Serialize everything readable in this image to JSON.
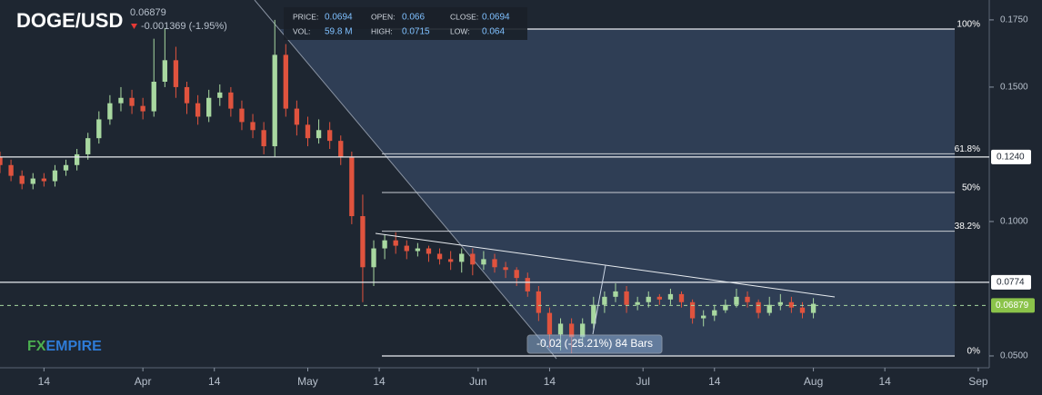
{
  "chart_data": {
    "type": "candlestick",
    "title": "DOGE/USD",
    "last_price": 0.06879,
    "change": "-0.001369 (-1.95%)",
    "info": {
      "labels": [
        "PRICE:",
        "OPEN:",
        "CLOSE:",
        "VOL:",
        "HIGH:",
        "LOW:"
      ],
      "values": [
        "0.0694",
        "0.066",
        "0.0694",
        "59.8 M",
        "0.0715",
        "0.064"
      ]
    },
    "logo": [
      "FX",
      "EMPIRE"
    ],
    "measure": "-0.02 (-25.21%) 84 Bars",
    "xlim": [
      0,
      180
    ],
    "ylim": [
      0.0456,
      0.1824
    ],
    "xticks": [
      {
        "value": 8,
        "label": "14"
      },
      {
        "value": 26,
        "label": "Apr"
      },
      {
        "value": 39,
        "label": "14"
      },
      {
        "value": 56,
        "label": "May"
      },
      {
        "value": 69,
        "label": "14"
      },
      {
        "value": 87,
        "label": "Jun"
      },
      {
        "value": 100,
        "label": "14"
      },
      {
        "value": 117,
        "label": "Jul"
      },
      {
        "value": 130,
        "label": "14"
      },
      {
        "value": 148,
        "label": "Aug"
      },
      {
        "value": 161,
        "label": "14"
      },
      {
        "value": 178,
        "label": "Sep"
      }
    ],
    "yticks": [
      {
        "value": 0.05,
        "label": "0.0500"
      },
      {
        "value": 0.1,
        "label": "0.1000"
      },
      {
        "value": 0.15,
        "label": "0.1500"
      },
      {
        "value": 0.175,
        "label": "0.1750"
      }
    ],
    "levels": [
      {
        "value": 0.124,
        "label": "0.1240"
      },
      0.0774
    ],
    "fib": [
      {
        "value": 0.1716,
        "label": "100%"
      },
      {
        "value": 0.1252,
        "label": "61.8%"
      },
      {
        "value": 0.1108,
        "label": "50%"
      },
      {
        "value": 0.0964,
        "label": "38.2%"
      },
      {
        "value": 0.05,
        "label": "0%"
      }
    ],
    "up_color": "#a8d8a0",
    "down_color": "#e0533e",
    "series": {
      "x": [
        0,
        2,
        4,
        6,
        8,
        10,
        12,
        14,
        16,
        18,
        20,
        22,
        24,
        26,
        28,
        30,
        32,
        34,
        36,
        38,
        40,
        42,
        44,
        46,
        48,
        50,
        52,
        54,
        56,
        58,
        60,
        62,
        64,
        66,
        68,
        70,
        72,
        74,
        76,
        78,
        80,
        82,
        84,
        86,
        88,
        90,
        92,
        94,
        96,
        98,
        100,
        102,
        104,
        106,
        108,
        110,
        112,
        114,
        116,
        118,
        120,
        122,
        124,
        126,
        128,
        130,
        132,
        134,
        136,
        138,
        140,
        142,
        144,
        146,
        148
      ],
      "open": [
        0.124,
        0.121,
        0.117,
        0.114,
        0.116,
        0.115,
        0.119,
        0.121,
        0.125,
        0.131,
        0.138,
        0.144,
        0.146,
        0.143,
        0.141,
        0.152,
        0.16,
        0.15,
        0.144,
        0.139,
        0.146,
        0.148,
        0.142,
        0.137,
        0.134,
        0.128,
        0.162,
        0.142,
        0.136,
        0.131,
        0.134,
        0.13,
        0.124,
        0.102,
        0.083,
        0.09,
        0.093,
        0.091,
        0.089,
        0.09,
        0.088,
        0.086,
        0.085,
        0.088,
        0.084,
        0.086,
        0.083,
        0.082,
        0.079,
        0.074,
        0.066,
        0.058,
        0.062,
        0.057,
        0.062,
        0.069,
        0.072,
        0.074,
        0.069,
        0.07,
        0.072,
        0.071,
        0.073,
        0.07,
        0.064,
        0.065,
        0.067,
        0.069,
        0.072,
        0.07,
        0.066,
        0.069,
        0.07,
        0.068,
        0.066
      ],
      "high": [
        0.126,
        0.123,
        0.119,
        0.118,
        0.118,
        0.121,
        0.123,
        0.127,
        0.133,
        0.141,
        0.147,
        0.15,
        0.149,
        0.146,
        0.168,
        0.172,
        0.165,
        0.152,
        0.147,
        0.149,
        0.151,
        0.15,
        0.145,
        0.14,
        0.137,
        0.175,
        0.166,
        0.145,
        0.139,
        0.138,
        0.137,
        0.132,
        0.126,
        0.11,
        0.093,
        0.095,
        0.096,
        0.093,
        0.092,
        0.091,
        0.09,
        0.089,
        0.09,
        0.09,
        0.089,
        0.088,
        0.085,
        0.083,
        0.081,
        0.076,
        0.068,
        0.064,
        0.064,
        0.064,
        0.072,
        0.074,
        0.077,
        0.076,
        0.072,
        0.074,
        0.073,
        0.075,
        0.074,
        0.071,
        0.067,
        0.069,
        0.071,
        0.075,
        0.074,
        0.071,
        0.072,
        0.073,
        0.072,
        0.07,
        0.0715
      ],
      "low": [
        0.118,
        0.115,
        0.112,
        0.112,
        0.113,
        0.113,
        0.117,
        0.119,
        0.123,
        0.129,
        0.136,
        0.141,
        0.14,
        0.138,
        0.139,
        0.15,
        0.146,
        0.14,
        0.136,
        0.137,
        0.143,
        0.139,
        0.134,
        0.131,
        0.125,
        0.124,
        0.139,
        0.132,
        0.128,
        0.129,
        0.127,
        0.121,
        0.099,
        0.07,
        0.076,
        0.086,
        0.088,
        0.086,
        0.087,
        0.085,
        0.084,
        0.082,
        0.081,
        0.08,
        0.082,
        0.081,
        0.079,
        0.076,
        0.072,
        0.063,
        0.053,
        0.052,
        0.051,
        0.055,
        0.06,
        0.066,
        0.07,
        0.066,
        0.067,
        0.068,
        0.069,
        0.069,
        0.068,
        0.062,
        0.061,
        0.063,
        0.066,
        0.068,
        0.068,
        0.064,
        0.065,
        0.067,
        0.066,
        0.064,
        0.064
      ],
      "close": [
        0.121,
        0.117,
        0.114,
        0.116,
        0.115,
        0.119,
        0.121,
        0.125,
        0.131,
        0.138,
        0.144,
        0.146,
        0.143,
        0.141,
        0.152,
        0.16,
        0.15,
        0.144,
        0.139,
        0.146,
        0.148,
        0.142,
        0.137,
        0.134,
        0.128,
        0.162,
        0.142,
        0.136,
        0.131,
        0.134,
        0.13,
        0.124,
        0.102,
        0.083,
        0.09,
        0.093,
        0.091,
        0.089,
        0.09,
        0.088,
        0.086,
        0.085,
        0.088,
        0.084,
        0.086,
        0.083,
        0.082,
        0.079,
        0.074,
        0.066,
        0.058,
        0.062,
        0.057,
        0.062,
        0.069,
        0.072,
        0.074,
        0.069,
        0.07,
        0.072,
        0.071,
        0.073,
        0.07,
        0.064,
        0.065,
        0.067,
        0.069,
        0.072,
        0.07,
        0.066,
        0.069,
        0.07,
        0.068,
        0.066,
        0.0694
      ]
    }
  }
}
